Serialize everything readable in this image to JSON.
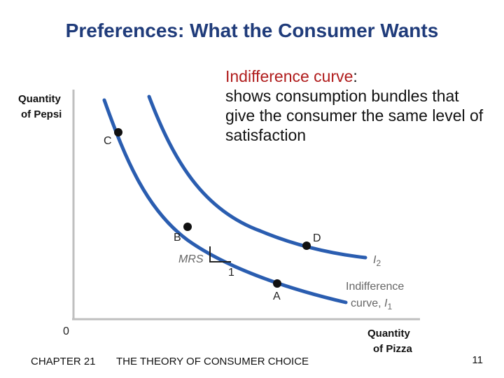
{
  "slide": {
    "title": "Preferences:  What the Consumer Wants",
    "definition_term": "Indifference curve",
    "definition_colon": ":",
    "definition_text": "shows consumption bundles that give the consumer the same level of satisfaction"
  },
  "diagram": {
    "y_axis_label_line1": "Quantity",
    "y_axis_label_line2": "of Pepsi",
    "x_axis_label_line1": "Quantity",
    "x_axis_label_line2": "of Pizza",
    "origin": "0",
    "points": {
      "C": "C",
      "B": "B",
      "D": "D",
      "A": "A"
    },
    "mrs_label": "MRS",
    "mrs_run": "1",
    "curve2_label": "I",
    "curve2_sub": "2",
    "curve1_label_line1": "Indifference",
    "curve1_label_line2": "curve, ",
    "curve1_label_I": "I",
    "curve1_sub": "1",
    "curve_color": "#2a5db0",
    "point_color": "#111111"
  },
  "footer": {
    "chapter": "CHAPTER 21",
    "title": "THE THEORY OF CONSUMER CHOICE",
    "page": "11"
  }
}
